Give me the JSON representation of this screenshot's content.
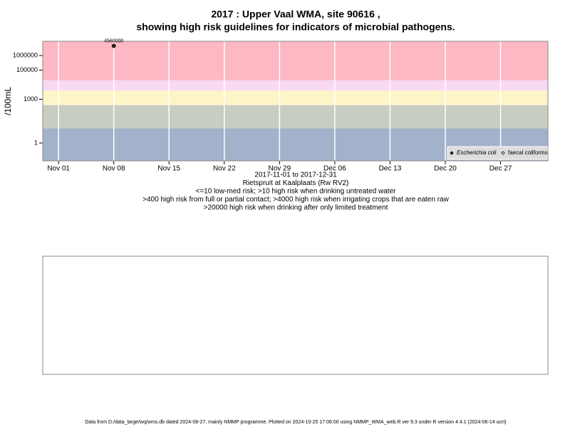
{
  "chart_data": {
    "type": "scatter",
    "title": "2017 : Upper Vaal WMA, site 90616 ,",
    "subtitle": "showing high risk guidelines for indicators of microbial pathogens.",
    "y_label": "/100mL",
    "x_label_lines": [
      "2017-11-01 to 2017-12-31",
      "Rietspruit at Kaalplaats (Rw RV2)",
      "<=10 low-med risk; >10 high risk when drinking untreated water",
      ">400 high risk from full or partial contact; >4000 high risk when irrigating crops that are eaten raw",
      ">20000 high risk when drinking after only limited treatment"
    ],
    "footer": "Data from D:/data_large/wq/wms.db dated 2024-08-27, mainly NMMP programme. Plotted on 2024-10-25 17:06:00 using NMMP_WMA_web.R ver 9.3 under R version 4.4.1 (2024-06-14 ucrt)",
    "log_y": true,
    "x": [
      "2017-11-08"
    ],
    "series": [
      {
        "name": "Escherichia coli",
        "color": "#222222",
        "marker": "filled",
        "values": [
          4560000
        ],
        "value_labels": [
          "4560000"
        ]
      },
      {
        "name": "faecal coliforms",
        "color": "#222222",
        "marker": "open",
        "values": [
          null
        ]
      }
    ],
    "risk_bands": [
      {
        "upper": 10,
        "color": "#a3b2cb"
      },
      {
        "upper": 400,
        "color": "#c7cdc0"
      },
      {
        "upper": 4000,
        "color": "#fdf5c7"
      },
      {
        "upper": 20000,
        "color": "#f8d9f4"
      },
      {
        "upper": null,
        "color": "#fdb8c4"
      }
    ],
    "xlim": [
      "2017-10-30",
      "2018-01-02"
    ],
    "xticks": [
      {
        "value": "2017-11-01",
        "label": "Nov 01"
      },
      {
        "value": "2017-11-08",
        "label": "Nov 08"
      },
      {
        "value": "2017-11-15",
        "label": "Nov 15"
      },
      {
        "value": "2017-11-22",
        "label": "Nov 22"
      },
      {
        "value": "2017-11-29",
        "label": "Nov 29"
      },
      {
        "value": "2017-12-06",
        "label": "Dec 06"
      },
      {
        "value": "2017-12-13",
        "label": "Dec 13"
      },
      {
        "value": "2017-12-20",
        "label": "Dec 20"
      },
      {
        "value": "2017-12-27",
        "label": "Dec 27"
      }
    ],
    "ylim": [
      0.06,
      9500000
    ],
    "yticks": [
      1,
      1000,
      100000,
      1000000
    ],
    "grid": true,
    "legend": "bottom-right"
  }
}
